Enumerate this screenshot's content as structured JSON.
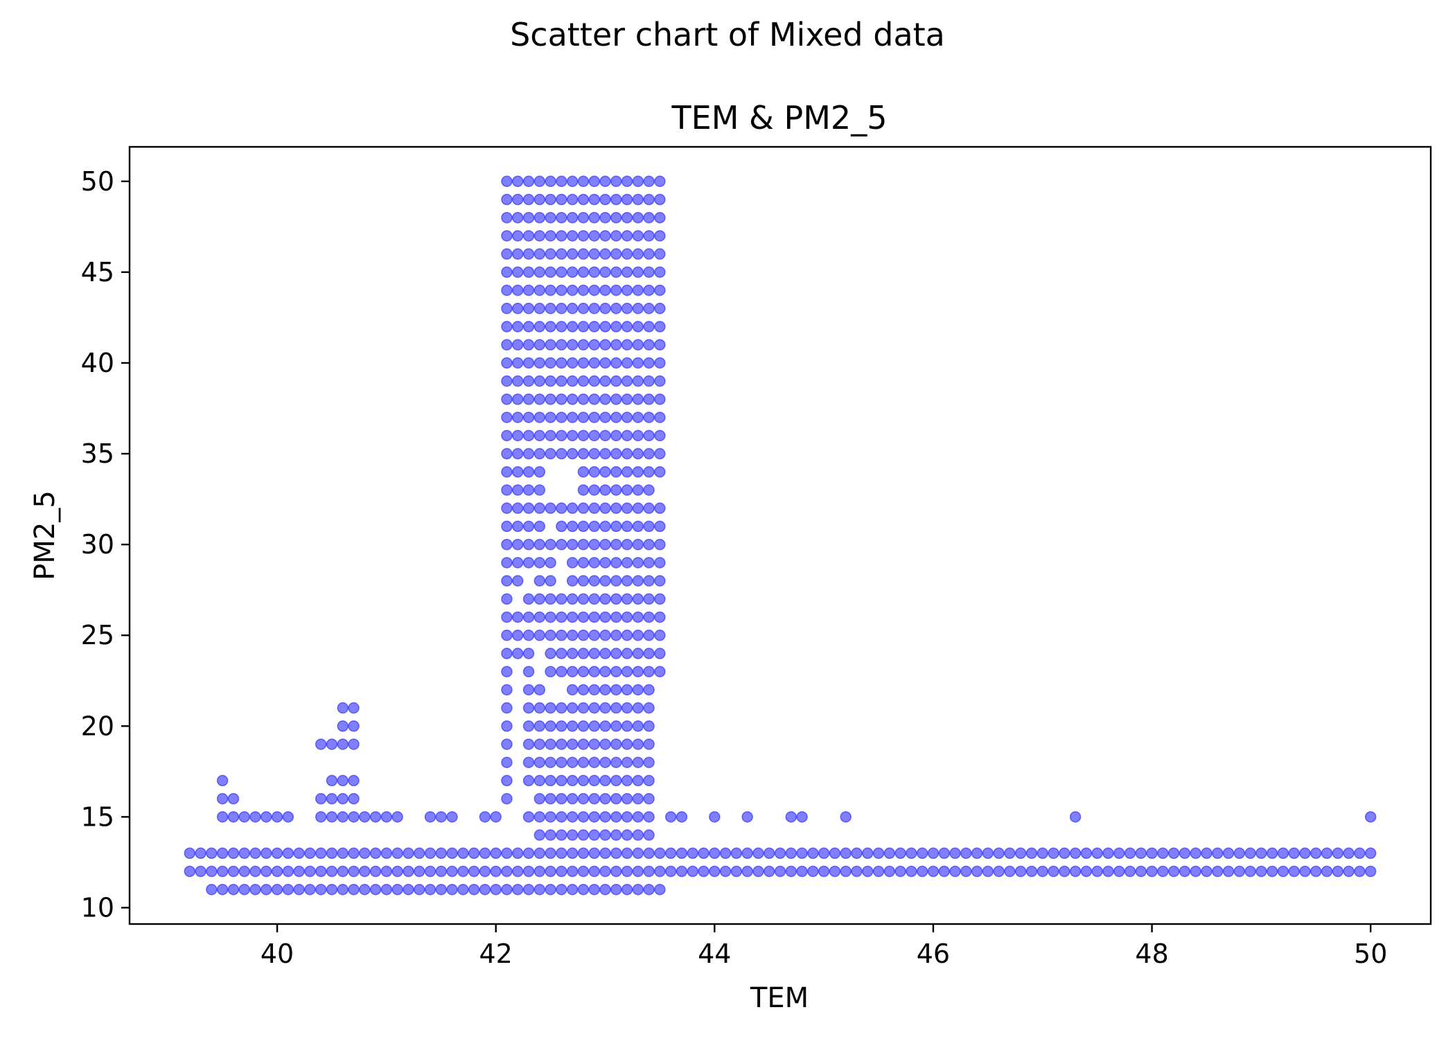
{
  "figure": {
    "suptitle": "Scatter chart of Mixed data"
  },
  "chart_data": {
    "type": "scatter",
    "title": "TEM & PM2_5",
    "xlabel": "TEM",
    "ylabel": "PM2_5",
    "xlim": [
      38.65,
      50.55
    ],
    "ylim": [
      9.1,
      51.9
    ],
    "xticks": [
      40,
      42,
      44,
      46,
      48,
      50
    ],
    "yticks": [
      10,
      15,
      20,
      25,
      30,
      35,
      40,
      45,
      50
    ],
    "grid": false,
    "legend": "none",
    "marker_color": "#0000ff",
    "marker_alpha": 0.5,
    "series": [
      {
        "points": "see x/y arrays",
        "baseline_rows": {
          "y_values": [
            12,
            13
          ],
          "x_start": 39.2,
          "x_end": 50.0,
          "x_step": 0.1
        },
        "row_11": {
          "y": 11,
          "x_start": 39.4,
          "x_end": 43.5,
          "x_step": 0.1
        },
        "dense_block": {
          "x_start": 42.1,
          "x_end": 43.5,
          "x_step": 0.1,
          "y_start": 14,
          "y_end": 50,
          "y_step": 1
        },
        "gaps": [
          [
            42.2,
            14
          ],
          [
            42.2,
            15
          ],
          [
            42.2,
            16
          ],
          [
            42.2,
            17
          ],
          [
            42.2,
            18
          ],
          [
            42.2,
            19
          ],
          [
            42.2,
            20
          ],
          [
            42.2,
            21
          ],
          [
            42.2,
            22
          ],
          [
            42.2,
            23
          ],
          [
            42.2,
            27
          ],
          [
            42.1,
            14
          ],
          [
            42.1,
            15
          ],
          [
            42.3,
            14
          ],
          [
            42.3,
            16
          ],
          [
            42.3,
            28
          ],
          [
            42.4,
            23
          ],
          [
            42.4,
            24
          ],
          [
            42.5,
            22
          ],
          [
            42.5,
            31
          ],
          [
            42.5,
            33
          ],
          [
            42.5,
            34
          ],
          [
            42.6,
            22
          ],
          [
            42.6,
            28
          ],
          [
            42.6,
            29
          ],
          [
            42.6,
            33
          ],
          [
            42.6,
            34
          ],
          [
            42.7,
            33
          ],
          [
            42.7,
            34
          ],
          [
            43.5,
            14
          ],
          [
            43.5,
            15
          ],
          [
            43.5,
            16
          ],
          [
            43.5,
            17
          ],
          [
            43.5,
            18
          ],
          [
            43.5,
            19
          ],
          [
            43.5,
            20
          ],
          [
            43.5,
            21
          ],
          [
            43.5,
            22
          ],
          [
            43.5,
            33
          ]
        ],
        "extra_points": [
          [
            39.5,
            17
          ],
          [
            39.5,
            16
          ],
          [
            39.6,
            16
          ],
          [
            39.5,
            15
          ],
          [
            39.6,
            15
          ],
          [
            39.7,
            15
          ],
          [
            39.8,
            15
          ],
          [
            39.9,
            15
          ],
          [
            40.0,
            15
          ],
          [
            40.1,
            15
          ],
          [
            40.4,
            19
          ],
          [
            40.5,
            19
          ],
          [
            40.6,
            19
          ],
          [
            40.7,
            19
          ],
          [
            40.6,
            21
          ],
          [
            40.7,
            21
          ],
          [
            40.6,
            20
          ],
          [
            40.7,
            20
          ],
          [
            40.5,
            17
          ],
          [
            40.6,
            17
          ],
          [
            40.7,
            17
          ],
          [
            40.4,
            16
          ],
          [
            40.5,
            16
          ],
          [
            40.6,
            16
          ],
          [
            40.7,
            16
          ],
          [
            40.4,
            15
          ],
          [
            40.5,
            15
          ],
          [
            40.6,
            15
          ],
          [
            40.7,
            15
          ],
          [
            40.8,
            15
          ],
          [
            40.9,
            15
          ],
          [
            41.0,
            15
          ],
          [
            41.1,
            15
          ],
          [
            41.4,
            15
          ],
          [
            41.5,
            15
          ],
          [
            41.6,
            15
          ],
          [
            41.9,
            15
          ],
          [
            42.0,
            15
          ],
          [
            43.6,
            15
          ],
          [
            43.7,
            15
          ],
          [
            44.0,
            15
          ],
          [
            44.3,
            15
          ],
          [
            44.7,
            15
          ],
          [
            44.8,
            15
          ],
          [
            45.2,
            15
          ],
          [
            47.3,
            15
          ],
          [
            50.0,
            15
          ]
        ]
      }
    ]
  }
}
